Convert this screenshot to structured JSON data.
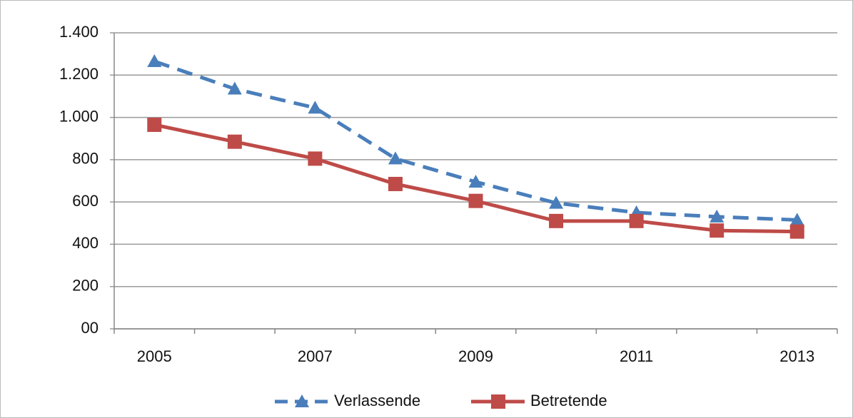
{
  "chart_data": {
    "type": "line",
    "categories": [
      "2005",
      null,
      "2007",
      null,
      "2009",
      null,
      "2011",
      null,
      "2013"
    ],
    "series": [
      {
        "name": "Verlassende",
        "color": "#4a7ebb",
        "dashed": true,
        "marker": "triangle",
        "values": [
          1265,
          1135,
          1045,
          805,
          695,
          595,
          550,
          530,
          515
        ]
      },
      {
        "name": "Betretende",
        "color": "#be4b48",
        "dashed": false,
        "marker": "square",
        "values": [
          965,
          885,
          805,
          685,
          605,
          510,
          510,
          465,
          460
        ]
      }
    ],
    "ylim": [
      0,
      1400
    ],
    "yticks": [
      {
        "value": 0,
        "label": "00"
      },
      200,
      400,
      600,
      800,
      {
        "value": 1000,
        "label": "1.000"
      },
      {
        "value": 1200,
        "label": "1.200"
      },
      {
        "value": 1400,
        "label": "1.400"
      }
    ],
    "grid": true,
    "legend": "bottom"
  }
}
